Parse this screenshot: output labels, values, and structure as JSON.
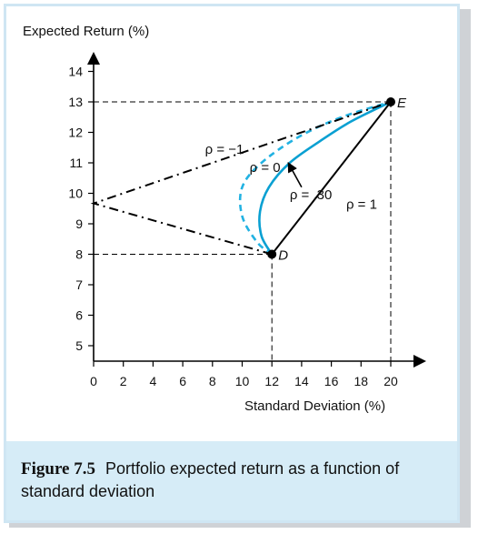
{
  "chart_data": {
    "type": "line",
    "title": "",
    "xlabel": "Standard Deviation (%)",
    "ylabel": "Expected Return (%)",
    "xlim": [
      0,
      20
    ],
    "ylim": [
      5,
      14
    ],
    "x_ticks": [
      0,
      2,
      4,
      6,
      8,
      10,
      12,
      14,
      16,
      18,
      20
    ],
    "y_ticks": [
      5,
      6,
      7,
      8,
      9,
      10,
      11,
      12,
      13,
      14
    ],
    "grid": false,
    "colors": {
      "axes": "#000000",
      "rho_positive_curve": "#0aa0d2",
      "rho_zero_curve": "#22b2e2"
    },
    "points": [
      {
        "name": "D",
        "x": 12,
        "y": 8
      },
      {
        "name": "E",
        "x": 20,
        "y": 13
      }
    ],
    "series": [
      {
        "name": "ρ = 1",
        "style": "solid",
        "color": "#000000",
        "x": [
          12,
          20
        ],
        "y": [
          8,
          13
        ]
      },
      {
        "name": "ρ = .30",
        "style": "solid",
        "color": "#0aa0d2",
        "x": [
          12.0,
          11.3,
          11.2,
          11.8,
          13.2,
          15.2,
          17.3,
          20.0
        ],
        "y": [
          8.0,
          8.6,
          9.4,
          10.2,
          11.0,
          11.7,
          12.35,
          13.0
        ]
      },
      {
        "name": "ρ = 0",
        "style": "dashed",
        "color": "#22b2e2",
        "x": [
          12.0,
          11.0,
          10.0,
          10.0,
          11.3,
          13.8,
          16.7,
          20.0
        ],
        "y": [
          8.0,
          8.4,
          9.25,
          10.2,
          11.0,
          11.85,
          12.5,
          13.0
        ]
      },
      {
        "name": "ρ = −1",
        "style": "dash-dot",
        "color": "#000000",
        "x": [
          12,
          0,
          20
        ],
        "y": [
          8,
          9.67,
          13
        ]
      }
    ],
    "reference_lines": [
      {
        "from": [
          0,
          13
        ],
        "to": [
          20,
          13
        ]
      },
      {
        "from": [
          20,
          13
        ],
        "to": [
          20,
          5
        ]
      },
      {
        "from": [
          0,
          8
        ],
        "to": [
          12,
          8
        ]
      },
      {
        "from": [
          12,
          8
        ],
        "to": [
          12,
          5
        ]
      }
    ],
    "annotations": [
      {
        "text": "ρ = −1",
        "x": 7.5,
        "y": 11.3
      },
      {
        "text": "ρ = 0",
        "x": 10.5,
        "y": 10.7
      },
      {
        "text": "ρ = .30",
        "x": 13.2,
        "y": 9.8
      },
      {
        "text": "ρ = 1",
        "x": 17.0,
        "y": 9.5
      }
    ],
    "arrows": [
      {
        "from": [
          14.0,
          10.2
        ],
        "to": [
          13.1,
          11.0
        ]
      }
    ]
  },
  "caption": {
    "label": "Figure 7.5",
    "text": "Portfolio expected return as a function of standard deviation"
  }
}
